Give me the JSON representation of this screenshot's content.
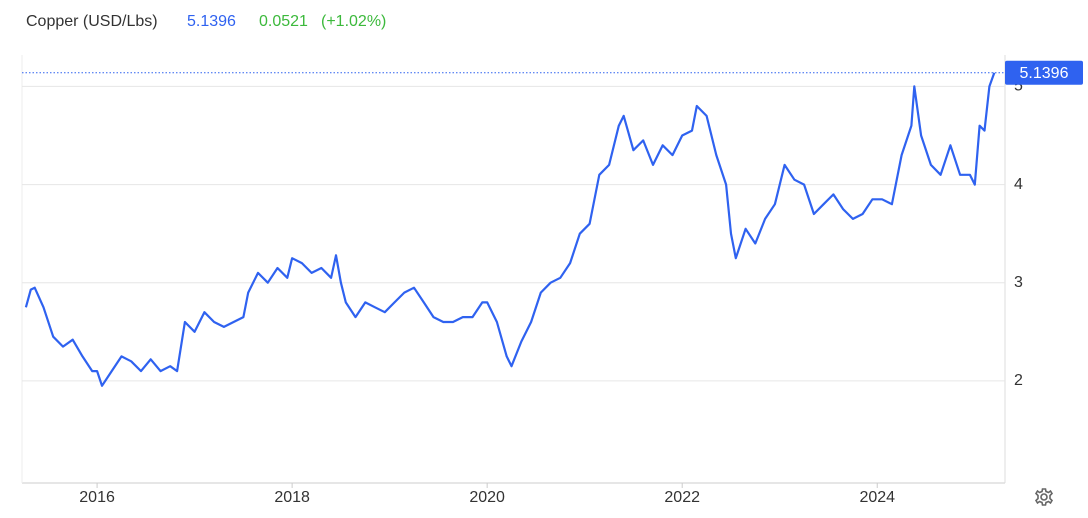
{
  "chart_data": {
    "type": "line",
    "title": "Copper (USD/Lbs)",
    "change": "0.0521",
    "change_pct": "(+1.02%)",
    "color": "#2f62f0",
    "x": [
      2015.27,
      2015.32,
      2015.36,
      2015.45,
      2015.55,
      2015.65,
      2015.75,
      2015.85,
      2015.95,
      2016.0,
      2016.05,
      2016.15,
      2016.25,
      2016.35,
      2016.45,
      2016.55,
      2016.65,
      2016.75,
      2016.82,
      2016.9,
      2017.0,
      2017.1,
      2017.2,
      2017.3,
      2017.4,
      2017.5,
      2017.55,
      2017.65,
      2017.75,
      2017.85,
      2017.95,
      2018.0,
      2018.1,
      2018.2,
      2018.3,
      2018.4,
      2018.45,
      2018.5,
      2018.55,
      2018.65,
      2018.75,
      2018.85,
      2018.95,
      2019.05,
      2019.15,
      2019.25,
      2019.35,
      2019.45,
      2019.55,
      2019.65,
      2019.75,
      2019.85,
      2019.95,
      2020.0,
      2020.1,
      2020.2,
      2020.25,
      2020.35,
      2020.45,
      2020.55,
      2020.65,
      2020.75,
      2020.85,
      2020.95,
      2021.05,
      2021.15,
      2021.25,
      2021.35,
      2021.4,
      2021.5,
      2021.6,
      2021.7,
      2021.8,
      2021.9,
      2022.0,
      2022.1,
      2022.15,
      2022.25,
      2022.35,
      2022.45,
      2022.5,
      2022.55,
      2022.65,
      2022.75,
      2022.85,
      2022.95,
      2023.05,
      2023.15,
      2023.25,
      2023.35,
      2023.45,
      2023.55,
      2023.65,
      2023.75,
      2023.85,
      2023.95,
      2024.05,
      2024.15,
      2024.25,
      2024.35,
      2024.38,
      2024.45,
      2024.55,
      2024.65,
      2024.75,
      2024.85,
      2024.95,
      2025.0,
      2025.05,
      2025.1,
      2025.15,
      2025.2
    ],
    "values": [
      2.75,
      2.93,
      2.95,
      2.75,
      2.45,
      2.35,
      2.42,
      2.25,
      2.1,
      2.1,
      1.95,
      2.1,
      2.25,
      2.2,
      2.1,
      2.22,
      2.1,
      2.15,
      2.1,
      2.6,
      2.5,
      2.7,
      2.6,
      2.55,
      2.6,
      2.65,
      2.9,
      3.1,
      3.0,
      3.15,
      3.05,
      3.25,
      3.2,
      3.1,
      3.15,
      3.05,
      3.28,
      3.0,
      2.8,
      2.65,
      2.8,
      2.75,
      2.7,
      2.8,
      2.9,
      2.95,
      2.8,
      2.65,
      2.6,
      2.6,
      2.65,
      2.65,
      2.8,
      2.8,
      2.6,
      2.25,
      2.15,
      2.4,
      2.6,
      2.9,
      3.0,
      3.05,
      3.2,
      3.5,
      3.6,
      4.1,
      4.2,
      4.6,
      4.7,
      4.35,
      4.45,
      4.2,
      4.4,
      4.3,
      4.5,
      4.55,
      4.8,
      4.7,
      4.3,
      4.0,
      3.5,
      3.25,
      3.55,
      3.4,
      3.65,
      3.8,
      4.2,
      4.05,
      4.0,
      3.7,
      3.8,
      3.9,
      3.75,
      3.65,
      3.7,
      3.85,
      3.85,
      3.8,
      4.3,
      4.6,
      5.0,
      4.5,
      4.2,
      4.1,
      4.4,
      4.1,
      4.1,
      4.0,
      4.6,
      4.55,
      5.0,
      5.1396
    ],
    "xlim": [
      2015.23,
      2025.31
    ],
    "ylim": [
      0.96,
      5.32
    ],
    "xticks": [
      2016,
      2018,
      2020,
      2022,
      2024
    ],
    "yticks": [
      2,
      3,
      4,
      5
    ],
    "grid": true
  }
}
